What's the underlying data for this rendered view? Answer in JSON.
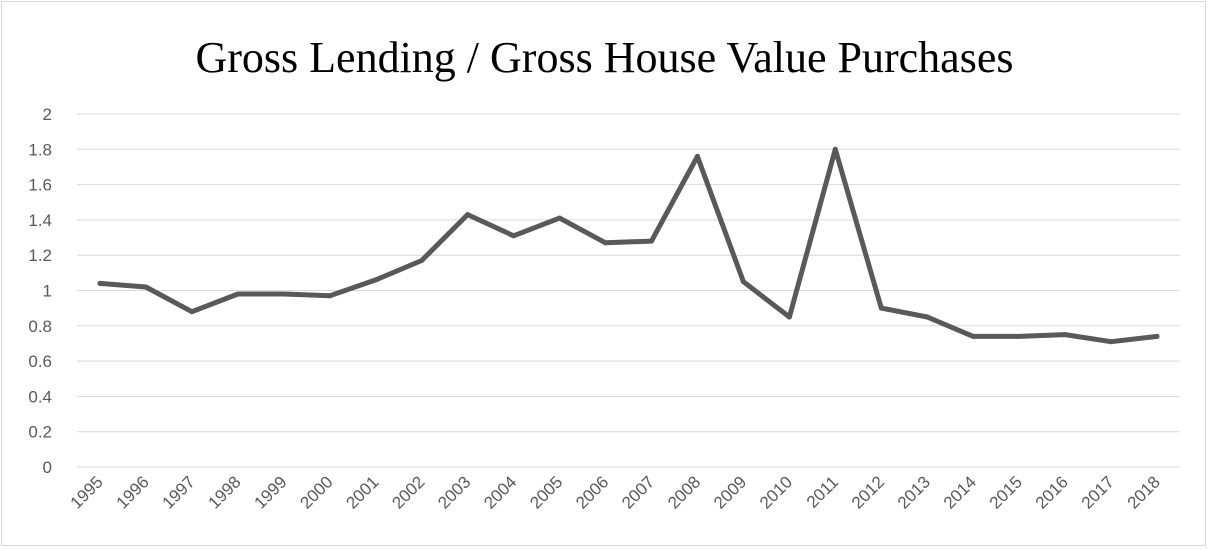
{
  "chart_data": {
    "type": "line",
    "title": "Gross Lending / Gross House Value Purchases",
    "xlabel": "",
    "ylabel": "",
    "categories": [
      "1995",
      "1996",
      "1997",
      "1998",
      "1999",
      "2000",
      "2001",
      "2002",
      "2003",
      "2004",
      "2005",
      "2006",
      "2007",
      "2008",
      "2009",
      "2010",
      "2011",
      "2012",
      "2013",
      "2014",
      "2015",
      "2016",
      "2017",
      "2018"
    ],
    "series": [
      {
        "values": [
          1.04,
          1.02,
          0.88,
          0.98,
          0.98,
          0.97,
          1.06,
          1.17,
          1.43,
          1.31,
          1.41,
          1.27,
          1.28,
          1.76,
          1.05,
          0.85,
          1.8,
          0.9,
          0.85,
          0.74,
          0.74,
          0.75,
          0.71,
          0.74
        ]
      }
    ],
    "ylim": [
      0,
      2
    ],
    "yticks": [
      "0",
      "0.2",
      "0.4",
      "0.6",
      "0.8",
      "1",
      "1.2",
      "1.4",
      "1.6",
      "1.8",
      "2"
    ],
    "grid": true,
    "legend": "none",
    "colors": {
      "line": "#595959",
      "grid": "#d9d9d9",
      "text": "#595959"
    }
  }
}
